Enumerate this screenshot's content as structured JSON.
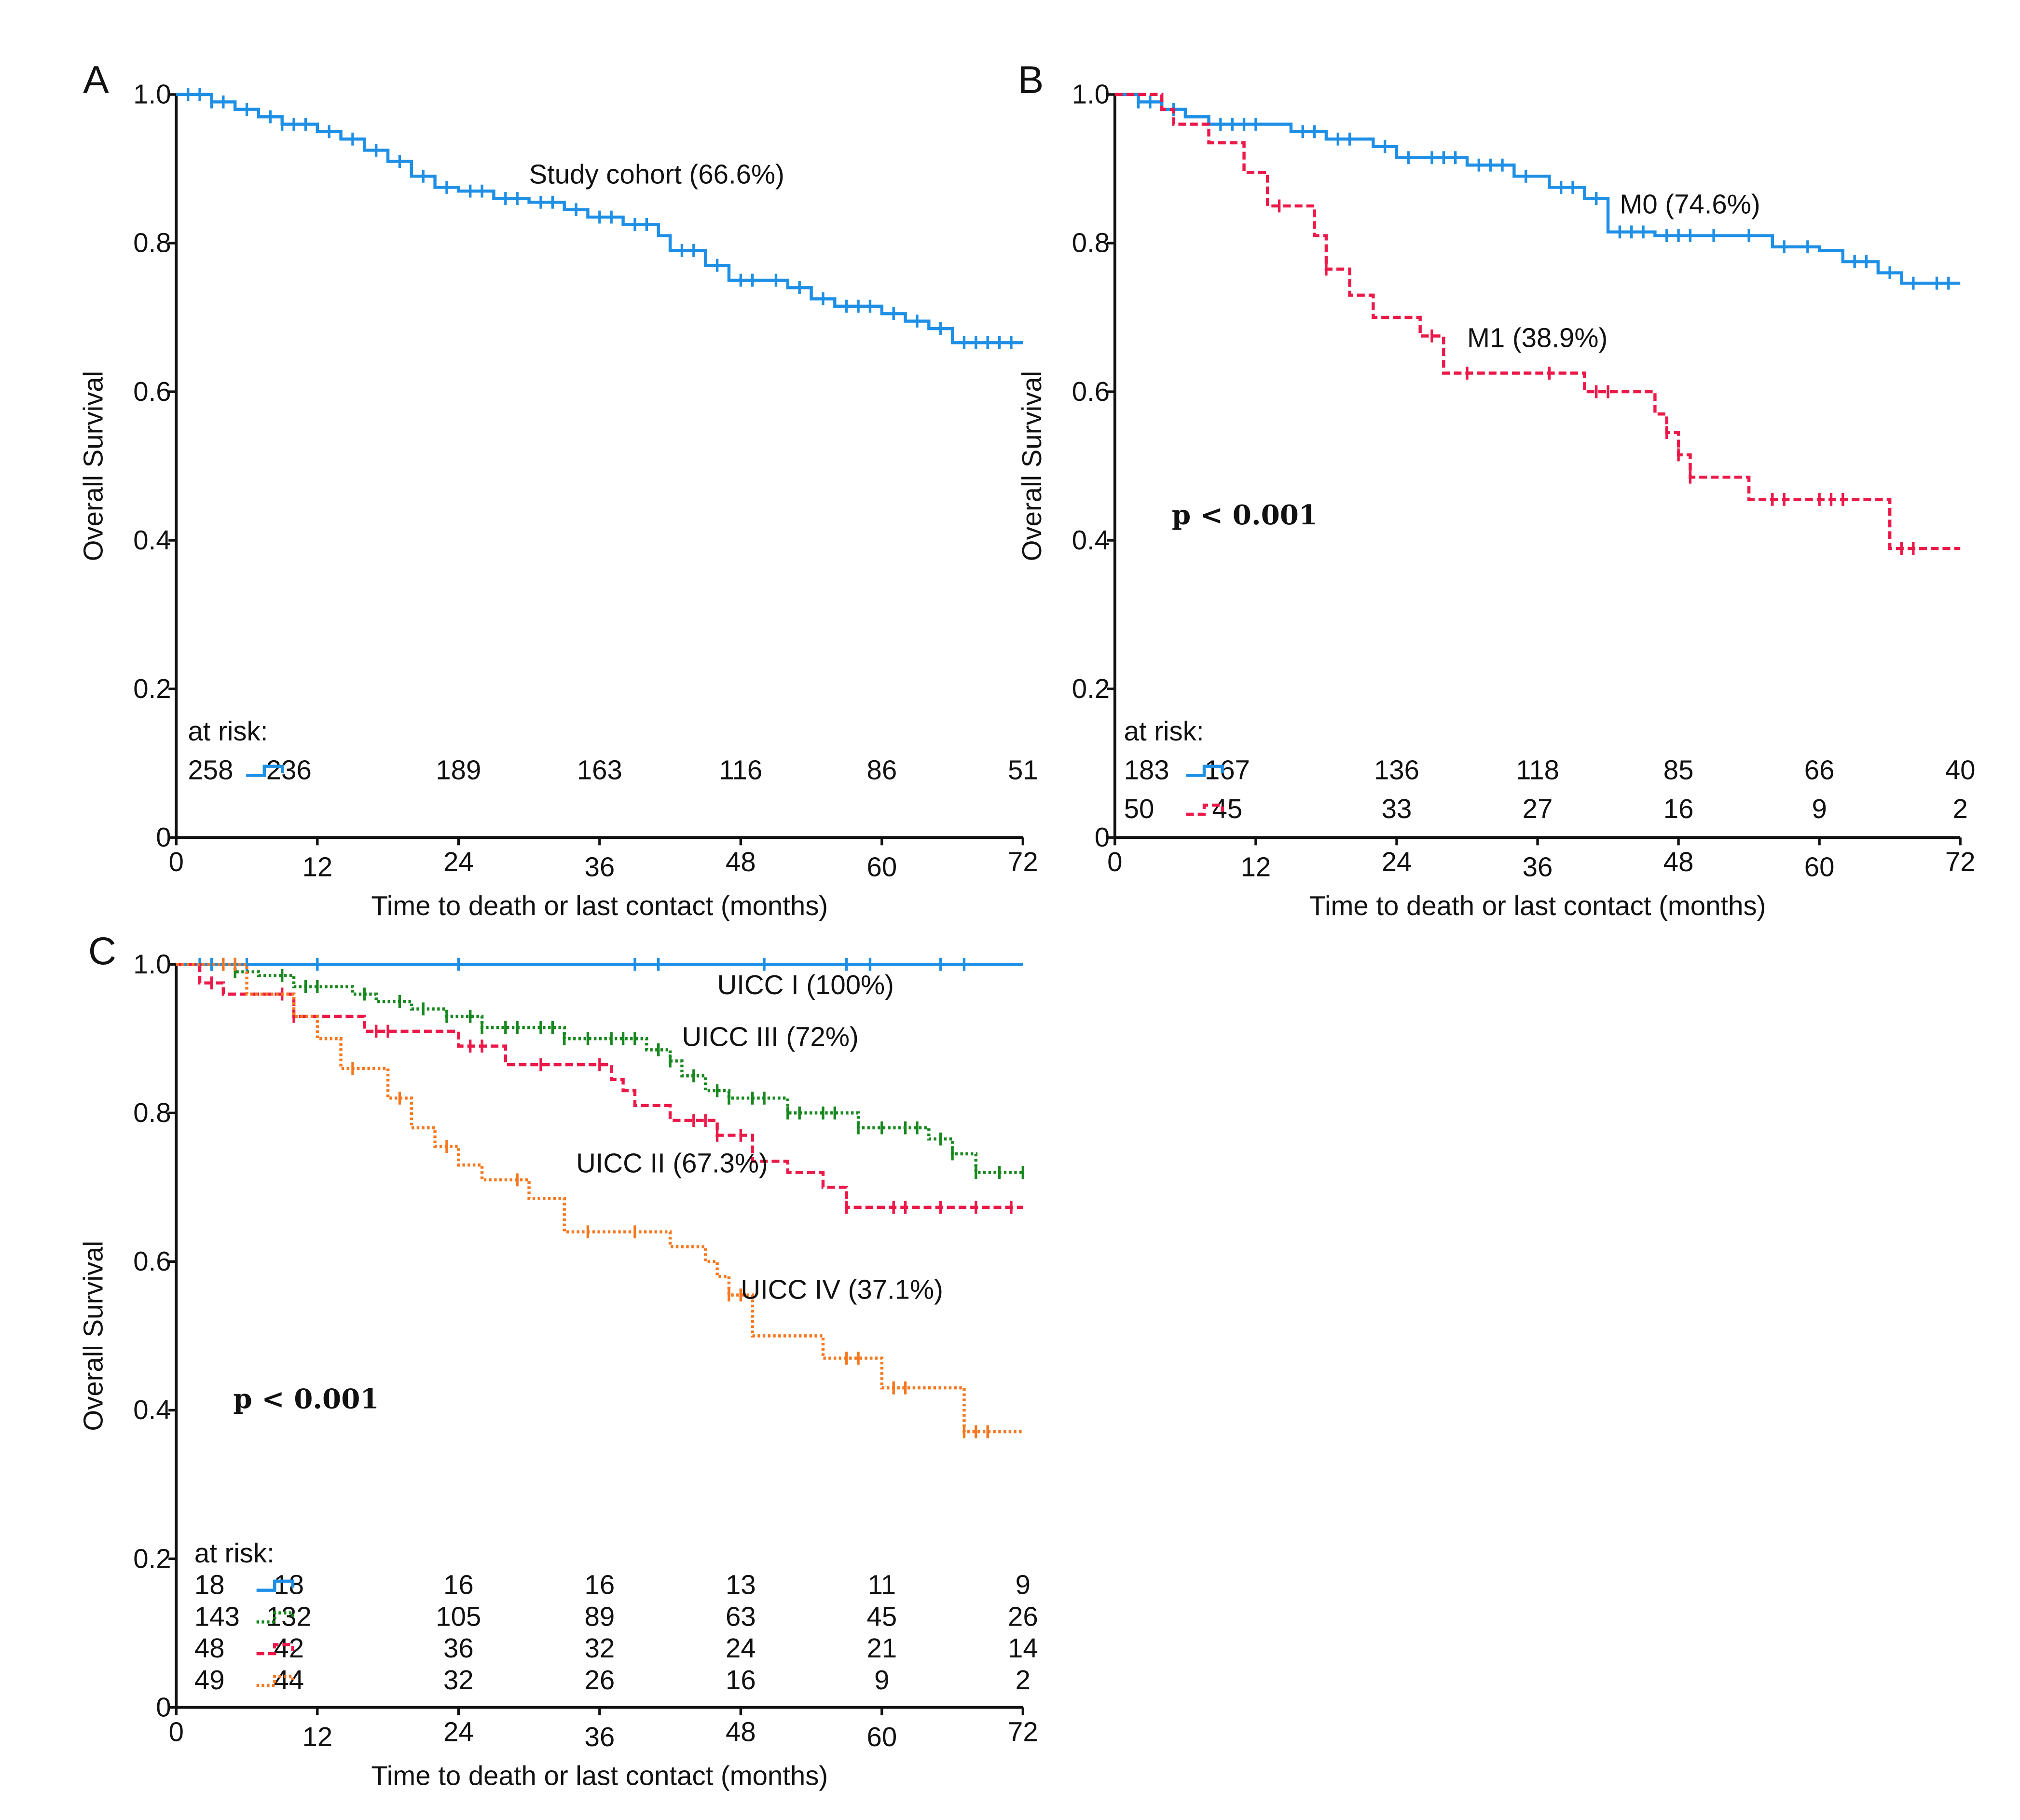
{
  "colors": {
    "blue": "#1e8fe6",
    "red": "#ec1848",
    "green": "#17881e",
    "orange": "#f7771f",
    "axis": "#111111"
  },
  "chart_data": [
    {
      "panel": "A",
      "type": "line",
      "subtype": "kaplan-meier",
      "xlabel": "Time to death or last contact (months)",
      "ylabel": "Overall Survival",
      "xlim": [
        0,
        72
      ],
      "ylim": [
        0,
        1
      ],
      "xticks": [
        "0",
        "12",
        "24",
        "36",
        "48",
        "60",
        "72"
      ],
      "yticks": [
        "0",
        "0.2",
        "0.4",
        "0.6",
        "0.8",
        "1.0"
      ],
      "at_risk_label": "at risk:",
      "p_value": null,
      "series": [
        {
          "name": "Study cohort (66.6%)",
          "color": "blue",
          "style": "solid",
          "steps": [
            [
              0,
              1
            ],
            [
              3,
              0.99
            ],
            [
              5,
              0.98
            ],
            [
              7,
              0.97
            ],
            [
              9,
              0.96
            ],
            [
              12,
              0.95
            ],
            [
              14,
              0.94
            ],
            [
              16,
              0.925
            ],
            [
              18,
              0.91
            ],
            [
              20,
              0.89
            ],
            [
              22,
              0.875
            ],
            [
              24,
              0.87
            ],
            [
              27,
              0.86
            ],
            [
              30,
              0.855
            ],
            [
              33,
              0.845
            ],
            [
              35,
              0.835
            ],
            [
              38,
              0.825
            ],
            [
              41,
              0.81
            ],
            [
              42,
              0.79
            ],
            [
              45,
              0.77
            ],
            [
              47,
              0.75
            ],
            [
              52,
              0.74
            ],
            [
              54,
              0.725
            ],
            [
              56,
              0.715
            ],
            [
              60,
              0.705
            ],
            [
              62,
              0.695
            ],
            [
              64,
              0.685
            ],
            [
              66,
              0.666
            ],
            [
              72,
              0.666
            ]
          ],
          "censored": [
            1,
            2,
            3,
            4,
            6,
            8,
            9,
            10,
            11,
            13,
            15,
            17,
            19,
            21,
            23,
            25,
            26,
            28,
            29,
            31,
            32,
            34,
            36,
            37,
            39,
            40,
            43,
            44,
            46,
            48,
            49,
            51,
            53,
            55,
            57,
            58,
            59,
            61,
            63,
            65,
            67,
            68,
            69,
            70,
            71
          ],
          "at_risk": [
            "258",
            "236",
            "189",
            "163",
            "116",
            "86",
            "51"
          ],
          "label_pos": [
            30,
            0.88
          ]
        }
      ]
    },
    {
      "panel": "B",
      "type": "line",
      "subtype": "kaplan-meier",
      "xlabel": "Time to death or last contact (months)",
      "ylabel": "Overall Survival",
      "xlim": [
        0,
        72
      ],
      "ylim": [
        0,
        1
      ],
      "xticks": [
        "0",
        "12",
        "24",
        "36",
        "48",
        "60",
        "72"
      ],
      "yticks": [
        "0",
        "0.2",
        "0.4",
        "0.6",
        "0.8",
        "1.0"
      ],
      "at_risk_label": "at risk:",
      "p_value": "p < 0.001",
      "series": [
        {
          "name": "M0 (74.6%)",
          "color": "blue",
          "style": "solid",
          "steps": [
            [
              0,
              1
            ],
            [
              2,
              0.99
            ],
            [
              4,
              0.98
            ],
            [
              6,
              0.97
            ],
            [
              8,
              0.96
            ],
            [
              15,
              0.95
            ],
            [
              18,
              0.94
            ],
            [
              22,
              0.93
            ],
            [
              24,
              0.915
            ],
            [
              30,
              0.905
            ],
            [
              34,
              0.89
            ],
            [
              37,
              0.875
            ],
            [
              40,
              0.86
            ],
            [
              42,
              0.815
            ],
            [
              46,
              0.81
            ],
            [
              56,
              0.795
            ],
            [
              60,
              0.79
            ],
            [
              62,
              0.775
            ],
            [
              65,
              0.76
            ],
            [
              67,
              0.746
            ],
            [
              72,
              0.746
            ]
          ],
          "censored": [
            2,
            3,
            5,
            9,
            10,
            11,
            12,
            16,
            17,
            19,
            20,
            23,
            25,
            27,
            28,
            29,
            31,
            32,
            33,
            35,
            38,
            39,
            41,
            43,
            44,
            45,
            47,
            48,
            49,
            51,
            54,
            57,
            59,
            63,
            64,
            66,
            68,
            70,
            71
          ],
          "at_risk": [
            "183",
            "167",
            "136",
            "118",
            "85",
            "66",
            "40"
          ],
          "label_pos": [
            43,
            0.84
          ]
        },
        {
          "name": "M1 (38.9%)",
          "color": "red",
          "style": "dashed",
          "steps": [
            [
              0,
              1
            ],
            [
              4,
              0.98
            ],
            [
              5,
              0.96
            ],
            [
              8,
              0.935
            ],
            [
              11,
              0.895
            ],
            [
              13,
              0.85
            ],
            [
              17,
              0.81
            ],
            [
              18,
              0.765
            ],
            [
              20,
              0.73
            ],
            [
              22,
              0.7
            ],
            [
              26,
              0.675
            ],
            [
              28,
              0.625
            ],
            [
              40,
              0.6
            ],
            [
              46,
              0.57
            ],
            [
              47,
              0.545
            ],
            [
              48,
              0.515
            ],
            [
              49,
              0.485
            ],
            [
              54,
              0.455
            ],
            [
              66,
              0.389
            ],
            [
              72,
              0.389
            ]
          ],
          "censored": [
            14,
            18,
            27,
            30,
            37,
            41,
            42,
            47,
            48,
            49,
            56,
            57,
            60,
            61,
            62,
            67,
            68
          ],
          "at_risk": [
            "50",
            "45",
            "33",
            "27",
            "16",
            "9",
            "2"
          ],
          "label_pos": [
            30,
            0.66
          ]
        }
      ]
    },
    {
      "panel": "C",
      "type": "line",
      "subtype": "kaplan-meier",
      "xlabel": "Time to death or last contact (months)",
      "ylabel": "Overall Survival",
      "xlim": [
        0,
        72
      ],
      "ylim": [
        0,
        1
      ],
      "xticks": [
        "0",
        "12",
        "24",
        "36",
        "48",
        "60",
        "72"
      ],
      "yticks": [
        "0",
        "0.2",
        "0.4",
        "0.6",
        "0.8",
        "1.0"
      ],
      "at_risk_label": "at risk:",
      "p_value": "p < 0.001",
      "series": [
        {
          "name": "UICC I (100%)",
          "color": "blue",
          "style": "solid",
          "steps": [
            [
              0,
              1
            ],
            [
              72,
              1
            ]
          ],
          "censored": [
            2,
            3,
            4,
            5,
            6,
            12,
            24,
            39,
            41,
            50,
            57,
            59,
            65,
            67
          ],
          "at_risk": [
            "18",
            "18",
            "16",
            "16",
            "13",
            "11",
            "9"
          ],
          "label_pos": [
            46,
            0.96
          ]
        },
        {
          "name": "UICC III (72%)",
          "color": "green",
          "style": "dotted",
          "steps": [
            [
              0,
              1
            ],
            [
              5,
              0.99
            ],
            [
              7,
              0.985
            ],
            [
              10,
              0.97
            ],
            [
              15,
              0.96
            ],
            [
              17,
              0.95
            ],
            [
              20,
              0.94
            ],
            [
              23,
              0.93
            ],
            [
              26,
              0.915
            ],
            [
              33,
              0.9
            ],
            [
              40,
              0.885
            ],
            [
              42,
              0.87
            ],
            [
              43,
              0.85
            ],
            [
              45,
              0.83
            ],
            [
              47,
              0.82
            ],
            [
              52,
              0.8
            ],
            [
              58,
              0.78
            ],
            [
              64,
              0.765
            ],
            [
              66,
              0.745
            ],
            [
              68,
              0.72
            ],
            [
              72,
              0.72
            ]
          ],
          "censored": [
            5,
            9,
            11,
            12,
            16,
            19,
            21,
            23,
            25,
            26,
            28,
            29,
            31,
            32,
            33,
            35,
            37,
            38,
            39,
            41,
            42,
            44,
            46,
            47,
            49,
            50,
            52,
            53,
            55,
            56,
            58,
            60,
            62,
            63,
            65,
            66,
            68,
            70,
            72
          ],
          "at_risk": [
            "143",
            "132",
            "105",
            "89",
            "63",
            "45",
            "26"
          ],
          "label_pos": [
            43,
            0.89
          ]
        },
        {
          "name": "UICC II (67.3%)",
          "color": "red",
          "style": "dashed",
          "steps": [
            [
              0,
              1
            ],
            [
              2,
              0.975
            ],
            [
              4,
              0.96
            ],
            [
              10,
              0.93
            ],
            [
              16,
              0.91
            ],
            [
              24,
              0.89
            ],
            [
              28,
              0.865
            ],
            [
              37,
              0.845
            ],
            [
              38,
              0.83
            ],
            [
              39,
              0.81
            ],
            [
              42,
              0.79
            ],
            [
              46,
              0.77
            ],
            [
              49,
              0.735
            ],
            [
              52,
              0.72
            ],
            [
              55,
              0.7
            ],
            [
              57,
              0.673
            ],
            [
              72,
              0.673
            ]
          ],
          "censored": [
            3,
            9,
            10,
            17,
            18,
            25,
            26,
            31,
            36,
            44,
            45,
            46,
            48,
            57,
            61,
            62,
            65,
            68,
            71
          ],
          "at_risk": [
            "48",
            "42",
            "36",
            "32",
            "24",
            "21",
            "14"
          ],
          "label_pos": [
            34,
            0.72
          ]
        },
        {
          "name": "UICC IV (37.1%)",
          "color": "orange",
          "style": "dotted",
          "steps": [
            [
              0,
              1
            ],
            [
              6,
              0.96
            ],
            [
              10,
              0.93
            ],
            [
              12,
              0.9
            ],
            [
              14,
              0.86
            ],
            [
              18,
              0.82
            ],
            [
              20,
              0.78
            ],
            [
              22,
              0.755
            ],
            [
              24,
              0.73
            ],
            [
              26,
              0.71
            ],
            [
              30,
              0.685
            ],
            [
              33,
              0.64
            ],
            [
              42,
              0.62
            ],
            [
              45,
              0.6
            ],
            [
              46,
              0.58
            ],
            [
              47,
              0.555
            ],
            [
              49,
              0.5
            ],
            [
              55,
              0.47
            ],
            [
              60,
              0.43
            ],
            [
              67,
              0.371
            ],
            [
              72,
              0.371
            ]
          ],
          "censored": [
            4,
            5,
            15,
            19,
            23,
            29,
            35,
            39,
            47,
            48,
            57,
            58,
            61,
            62,
            67,
            68,
            69
          ],
          "at_risk": [
            "49",
            "44",
            "32",
            "26",
            "16",
            "9",
            "2"
          ],
          "label_pos": [
            48,
            0.55
          ]
        }
      ]
    }
  ]
}
